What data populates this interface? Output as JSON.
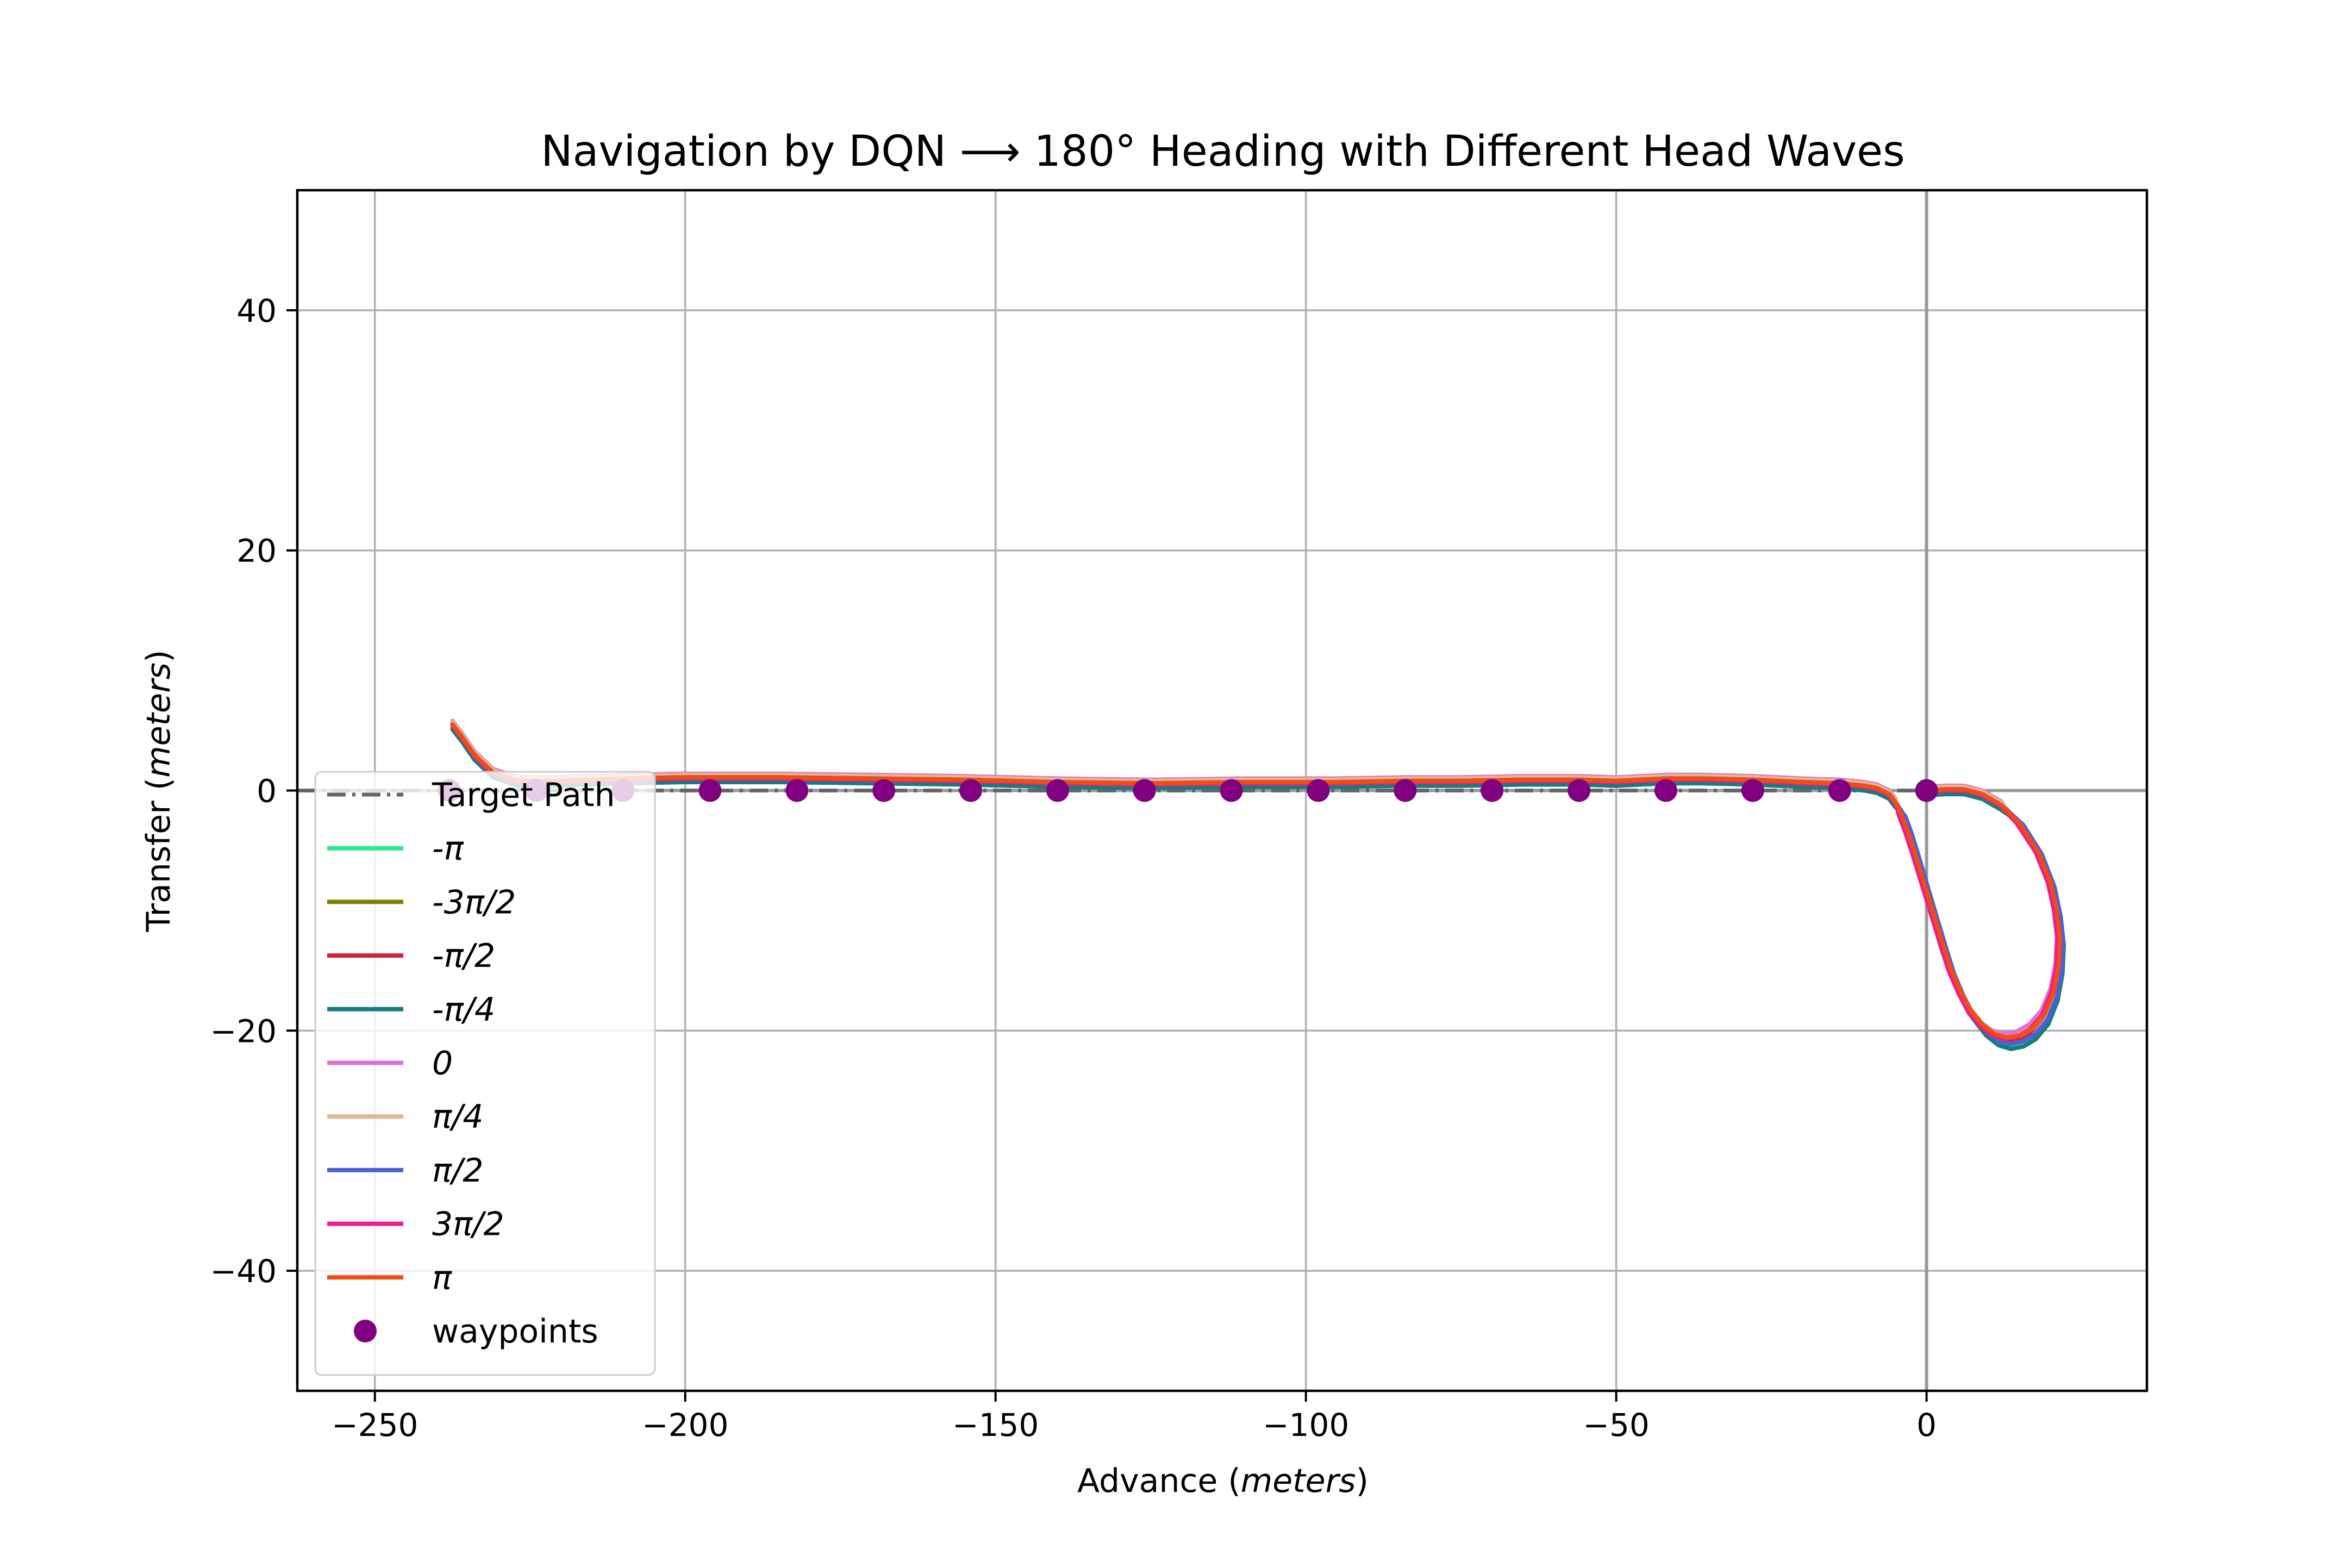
{
  "chart_data": {
    "type": "line",
    "title": "Navigation by DQN ⟶ 180° Heading with Different Head Waves",
    "xlabel_prefix": "Advance  (",
    "xlabel_unit": "meters",
    "xlabel_suffix": ")",
    "ylabel_prefix": "Transfer  (",
    "ylabel_unit": "meters",
    "ylabel_suffix": ")",
    "xlim": [
      -262.5,
      35.5
    ],
    "ylim": [
      -50,
      50
    ],
    "xticks": [
      -250,
      -200,
      -150,
      -100,
      -50,
      0
    ],
    "xtick_labels": [
      "−250",
      "−200",
      "−150",
      "−100",
      "−50",
      "0"
    ],
    "yticks": [
      -40,
      -20,
      0,
      20,
      40
    ],
    "ytick_labels": [
      "−40",
      "−20",
      "0",
      "20",
      "40"
    ],
    "grid": true,
    "legend_position": "lower-left",
    "target_path": {
      "name": "Target Path",
      "color": "#666666",
      "x": [
        -262.5,
        0
      ],
      "y": [
        0,
        0
      ]
    },
    "waypoints": {
      "name": "waypoints",
      "color": "#800080",
      "x": [
        -238,
        -224,
        -210,
        -196,
        -182,
        -168,
        -154,
        -140,
        -126,
        -112,
        -98,
        -84,
        -70,
        -56,
        -42,
        -28,
        -14,
        0
      ],
      "y": [
        0,
        0,
        0,
        0,
        0,
        0,
        0,
        0,
        0,
        0,
        0,
        0,
        0,
        0,
        0,
        0,
        0,
        0
      ]
    },
    "base_path": {
      "x": [
        0,
        3,
        6,
        9,
        12,
        15,
        18,
        20,
        21,
        21.5,
        21.3,
        20.5,
        19,
        17,
        15,
        13,
        11,
        9,
        7,
        5.5,
        4,
        3,
        2,
        1,
        0,
        -1,
        -2,
        -3,
        -4,
        -5,
        -6,
        -8,
        -10,
        -12,
        -14,
        -20,
        -28,
        -36,
        -42,
        -50,
        -56,
        -65,
        -75,
        -84,
        -95,
        -110,
        -125,
        -140,
        -155,
        -170,
        -185,
        -200,
        -210,
        -220,
        -227,
        -231,
        -234,
        -236,
        -237.5
      ],
      "y": [
        0,
        0.1,
        0.1,
        -0.3,
        -1.2,
        -2.8,
        -5.2,
        -7.8,
        -10.2,
        -12.5,
        -14.8,
        -17,
        -18.9,
        -20.1,
        -20.7,
        -20.9,
        -20.6,
        -19.8,
        -18.5,
        -17,
        -15.2,
        -13.6,
        -11.9,
        -10.2,
        -8.5,
        -6.8,
        -5.1,
        -3.5,
        -2.1,
        -1,
        -0.3,
        0.2,
        0.4,
        0.5,
        0.6,
        0.7,
        0.9,
        1.0,
        1.0,
        0.8,
        0.9,
        0.9,
        0.8,
        0.8,
        0.7,
        0.7,
        0.6,
        0.7,
        0.9,
        1.0,
        1.1,
        1.1,
        1.0,
        0.8,
        0.8,
        1.5,
        3.0,
        4.5,
        5.5
      ]
    },
    "series": [
      {
        "name": "-π",
        "color": "#2ee88a",
        "dx": 0.3,
        "dy": -0.3,
        "ys": 1.02
      },
      {
        "name": "-3π/2",
        "color": "#808000",
        "dx": 0.0,
        "dy": 0.1,
        "ys": 0.99
      },
      {
        "name": "-π/2",
        "color": "#d21f3c",
        "dx": -0.2,
        "dy": 0.0,
        "ys": 1.0
      },
      {
        "name": "-π/4",
        "color": "#167d7f",
        "dx": 0.6,
        "dy": -0.4,
        "ys": 1.03
      },
      {
        "name": "0",
        "color": "#df73d5",
        "dx": -0.5,
        "dy": 0.3,
        "ys": 0.97
      },
      {
        "name": "π/4",
        "color": "#dfb98c",
        "dx": 0.1,
        "dy": 0.2,
        "ys": 0.985
      },
      {
        "name": "π/2",
        "color": "#4a62d8",
        "dx": 0.5,
        "dy": 0.0,
        "ys": 1.01
      },
      {
        "name": "3π/2",
        "color": "#ef1a92",
        "dx": -0.4,
        "dy": -0.1,
        "ys": 0.99
      },
      {
        "name": "π",
        "color": "#f14b16",
        "dx": 0.0,
        "dy": 0.0,
        "ys": 0.985
      }
    ]
  }
}
